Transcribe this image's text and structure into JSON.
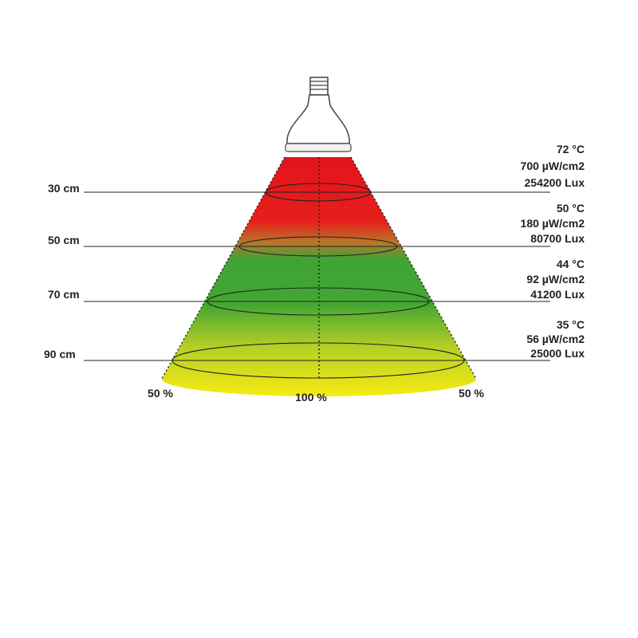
{
  "levels": [
    {
      "distance": "30 cm",
      "temperature": "72 °C",
      "uvb": "700 µW/cm2",
      "lux": "254200 Lux"
    },
    {
      "distance": "50 cm",
      "temperature": "50 °C",
      "uvb": "180 µW/cm2",
      "lux": "80700 Lux"
    },
    {
      "distance": "70 cm",
      "temperature": "44 °C",
      "uvb": "92 µW/cm2",
      "lux": "41200 Lux"
    },
    {
      "distance": "90 cm",
      "temperature": "35 °C",
      "uvb": "56 µW/cm2",
      "lux": "25000 Lux"
    }
  ],
  "coverage": {
    "left": "50 %",
    "center": "100 %",
    "right": "50 %"
  }
}
